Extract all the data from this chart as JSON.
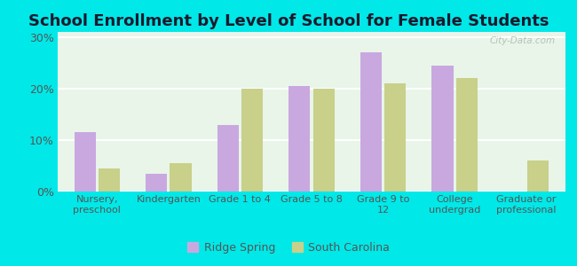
{
  "title": "School Enrollment by Level of School for Female Students",
  "categories": [
    "Nursery,\npreschool",
    "Kindergarten",
    "Grade 1 to 4",
    "Grade 5 to 8",
    "Grade 9 to\n12",
    "College\nundergrad",
    "Graduate or\nprofessional"
  ],
  "ridge_spring": [
    11.5,
    3.5,
    13.0,
    20.5,
    27.0,
    24.5,
    0.0
  ],
  "south_carolina": [
    4.5,
    5.5,
    20.0,
    20.0,
    21.0,
    22.0,
    6.0
  ],
  "bar_color_ridge": "#c9a8e0",
  "bar_color_sc": "#c8d08a",
  "background_outer": "#00e8e8",
  "background_inner_top": "#e8f5e8",
  "background_inner_bottom": "#d0eee0",
  "grid_color": "#ffffff",
  "ytick_labels": [
    "0%",
    "10%",
    "20%",
    "30%"
  ],
  "yticks": [
    0,
    10,
    20,
    30
  ],
  "ylim": [
    0,
    31
  ],
  "legend_ridge": "Ridge Spring",
  "legend_sc": "South Carolina",
  "title_fontsize": 13,
  "title_color": "#1a1a2e",
  "watermark": "City-Data.com",
  "tick_color": "#555555",
  "bar_width": 0.3
}
